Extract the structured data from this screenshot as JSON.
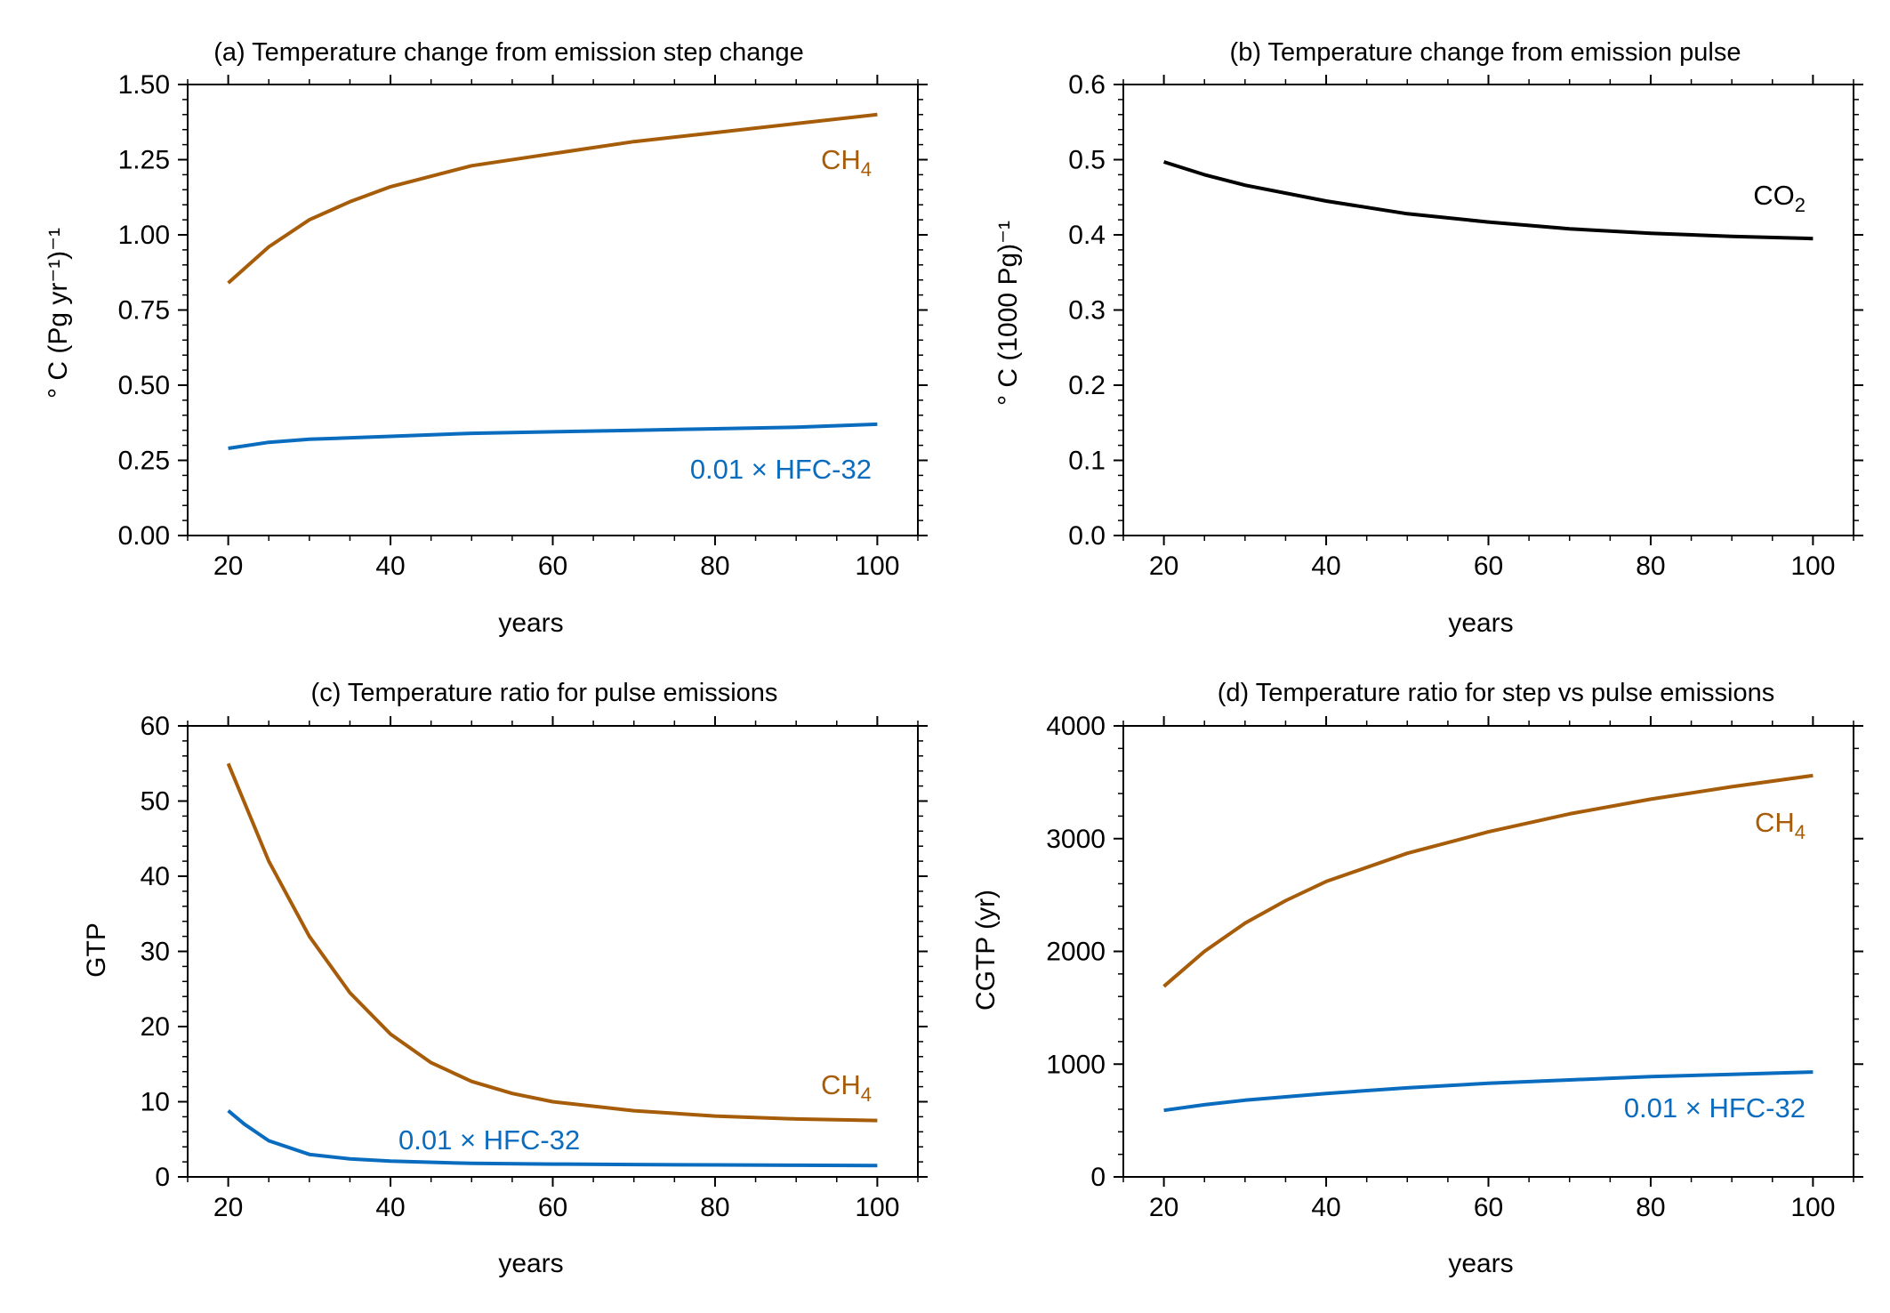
{
  "colors": {
    "ch4": "#a65c08",
    "hfc": "#0a6cbf",
    "co2": "#000000"
  },
  "chart_data": [
    {
      "type": "line",
      "title": "(a) Temperature change from emission step change",
      "xlabel": "years",
      "ylabel": "° C (Pg yr⁻¹)⁻¹",
      "xlim": [
        15,
        105
      ],
      "ylim": [
        0,
        1.5
      ],
      "xticks": [
        20,
        40,
        60,
        80,
        100
      ],
      "yticks": [
        0,
        0.25,
        0.5,
        0.75,
        1.0,
        1.25,
        1.5
      ],
      "ytick_labels": [
        "0.00",
        "0.25",
        "0.50",
        "0.75",
        "1.00",
        "1.25",
        "1.50"
      ],
      "series": [
        {
          "name": "CH₄",
          "color": "ch4",
          "x": [
            20,
            25,
            30,
            35,
            40,
            50,
            60,
            70,
            80,
            90,
            100
          ],
          "values": [
            0.84,
            0.96,
            1.05,
            1.11,
            1.16,
            1.23,
            1.27,
            1.31,
            1.34,
            1.37,
            1.4
          ]
        },
        {
          "name": "0.01 × HFC-32",
          "color": "hfc",
          "x": [
            20,
            25,
            30,
            40,
            50,
            60,
            70,
            80,
            90,
            100
          ],
          "values": [
            0.29,
            0.31,
            0.32,
            0.33,
            0.34,
            0.345,
            0.35,
            0.355,
            0.36,
            0.37
          ]
        }
      ]
    },
    {
      "type": "line",
      "title": "(b) Temperature change from emission pulse",
      "xlabel": "years",
      "ylabel": "° C (1000 Pg)⁻¹",
      "xlim": [
        15,
        105
      ],
      "ylim": [
        0,
        0.6
      ],
      "xticks": [
        20,
        40,
        60,
        80,
        100
      ],
      "yticks": [
        0,
        0.1,
        0.2,
        0.3,
        0.4,
        0.5,
        0.6
      ],
      "ytick_labels": [
        "0.0",
        "0.1",
        "0.2",
        "0.3",
        "0.4",
        "0.5",
        "0.6"
      ],
      "series": [
        {
          "name": "CO₂",
          "color": "co2",
          "x": [
            20,
            25,
            30,
            40,
            50,
            60,
            70,
            80,
            90,
            100
          ],
          "values": [
            0.497,
            0.48,
            0.466,
            0.445,
            0.428,
            0.417,
            0.408,
            0.402,
            0.398,
            0.395
          ]
        }
      ]
    },
    {
      "type": "line",
      "title": "(c) Temperature ratio for pulse emissions",
      "xlabel": "years",
      "ylabel": "GTP",
      "xlim": [
        15,
        105
      ],
      "ylim": [
        0,
        60
      ],
      "xticks": [
        20,
        40,
        60,
        80,
        100
      ],
      "yticks": [
        0,
        10,
        20,
        30,
        40,
        50,
        60
      ],
      "ytick_labels": [
        "0",
        "10",
        "20",
        "30",
        "40",
        "50",
        "60"
      ],
      "series": [
        {
          "name": "CH₄",
          "color": "ch4",
          "x": [
            20,
            25,
            30,
            35,
            40,
            45,
            50,
            55,
            60,
            70,
            80,
            90,
            100
          ],
          "values": [
            55,
            42,
            32,
            24.5,
            19,
            15.2,
            12.7,
            11.1,
            10,
            8.8,
            8.1,
            7.7,
            7.5
          ]
        },
        {
          "name": "0.01 × HFC-32",
          "color": "hfc",
          "x": [
            20,
            22,
            25,
            30,
            35,
            40,
            50,
            60,
            70,
            80,
            90,
            100
          ],
          "values": [
            8.8,
            7,
            4.8,
            3,
            2.4,
            2.1,
            1.8,
            1.7,
            1.65,
            1.6,
            1.55,
            1.5
          ]
        }
      ]
    },
    {
      "type": "line",
      "title": "(d) Temperature ratio for step vs pulse emissions",
      "xlabel": "years",
      "ylabel": "CGTP (yr)",
      "xlim": [
        15,
        105
      ],
      "ylim": [
        0,
        4000
      ],
      "xticks": [
        20,
        40,
        60,
        80,
        100
      ],
      "yticks": [
        0,
        1000,
        2000,
        3000,
        4000
      ],
      "ytick_labels": [
        "0",
        "1000",
        "2000",
        "3000",
        "4000"
      ],
      "series": [
        {
          "name": "CH₄",
          "color": "ch4",
          "x": [
            20,
            25,
            30,
            35,
            40,
            50,
            60,
            70,
            80,
            90,
            100
          ],
          "values": [
            1690,
            2000,
            2250,
            2450,
            2620,
            2870,
            3060,
            3220,
            3350,
            3460,
            3560
          ]
        },
        {
          "name": "0.01 × HFC-32",
          "color": "hfc",
          "x": [
            20,
            25,
            30,
            40,
            50,
            60,
            70,
            80,
            90,
            100
          ],
          "values": [
            590,
            640,
            680,
            740,
            790,
            830,
            860,
            890,
            910,
            930
          ]
        }
      ]
    }
  ]
}
